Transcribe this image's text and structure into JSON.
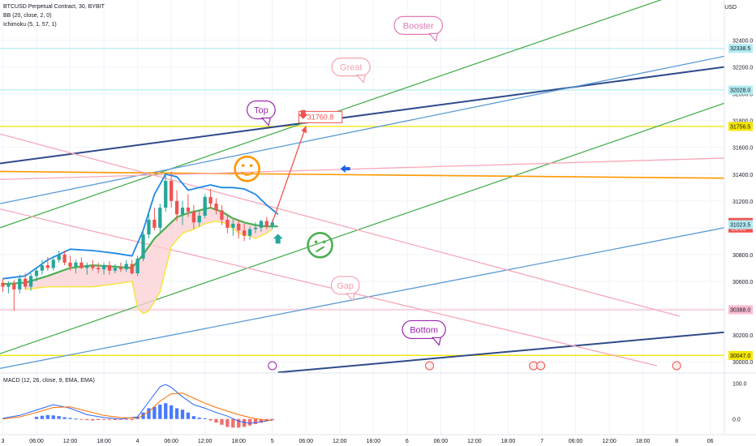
{
  "header": {
    "symbol_line": "BTCUSD Perpetual Contract, 30, BYBIT",
    "bb_line": "BB (20, close, 2, 0)",
    "ichimoku_line": "Ichimoku (5, 1, 57, 1)",
    "currency": "USD"
  },
  "macd": {
    "legend": "MACD (12, 26, close, 9, EMA, EMA)",
    "tick_labels": [
      "100.0",
      "0.0"
    ]
  },
  "colors": {
    "up": "#26a69a",
    "down": "#ef5350",
    "green_line": "#4caf50",
    "blue_line": "#5b9bd5",
    "navy_line": "#2f4a8a",
    "yellow_line": "#f5e500",
    "orange_line": "#ff9800",
    "pink_line": "#f7a8b8",
    "bb_upper": "#1e88e5",
    "ichimoku_lower": "#f5e642",
    "cloud_fill": "#f9cfd3",
    "purple": "#9c27b0"
  },
  "chart_data": {
    "type": "candlestick",
    "symbol": "BTCUSD",
    "interval": "30",
    "exchange": "BYBIT",
    "y_axis": {
      "ticks": [
        32400,
        32200,
        32000,
        31800,
        31600,
        31400,
        31200,
        31000,
        30800,
        30600,
        30400,
        30200,
        30000
      ],
      "tick_labels": [
        "32400.0",
        "32200.0",
        "32000.0",
        "31800.0",
        "31600.0",
        "31400.0",
        "31200.0",
        "31000.0",
        "30800.0",
        "30600.0",
        "30400.0",
        "30200.0",
        "30000.0"
      ],
      "ylim": [
        29940,
        32700
      ]
    },
    "x_axis": {
      "tick_labels": [
        "3",
        "06:00",
        "12:00",
        "18:00",
        "4",
        "06:00",
        "12:00",
        "18:00",
        "5",
        "06:00",
        "12:00",
        "18:00",
        "6",
        "06:00",
        "12:00",
        "18:00",
        "7",
        "06:00",
        "12:00",
        "18:00",
        "8",
        "06"
      ],
      "tick_hours": [
        0,
        6,
        12,
        18,
        24,
        30,
        36,
        42,
        48,
        54,
        60,
        66,
        72,
        78,
        84,
        90,
        96,
        102,
        108,
        114,
        120,
        126
      ],
      "xlim": [
        -0.5,
        128.5
      ]
    },
    "price_marks": [
      {
        "value": 32338.5,
        "label": "32338.5",
        "color": "#b2ebf2"
      },
      {
        "value": 32028.0,
        "label": "32028.0",
        "color": "#b2ebf2"
      },
      {
        "value": 31756.5,
        "label": "31756.5",
        "color": "#f5e500"
      },
      {
        "value": 31040.0,
        "label": "31040.0",
        "sub": "24:05",
        "color": "#ef5350"
      },
      {
        "value": 31023.5,
        "label": "31023.5",
        "color": "#b2ebf2"
      },
      {
        "value": 30388.0,
        "label": "30388.0",
        "color": "#f8bbd0"
      },
      {
        "value": 30047.0,
        "label": "30047.0",
        "color": "#f5e500"
      }
    ],
    "horizontal_lines": [
      {
        "y": 32338.5,
        "color": "#b2ebf2"
      },
      {
        "y": 32028.0,
        "color": "#b2ebf2"
      },
      {
        "y": 31756.5,
        "color": "#f5e500"
      },
      {
        "y": 30388.0,
        "color": "#f8bbd0"
      },
      {
        "y": 30047.0,
        "color": "#f5e500"
      }
    ],
    "trend_lines": [
      {
        "name": "navy-upper",
        "color": "#2f4a8a",
        "points": [
          [
            -0.5,
            31480
          ],
          [
            128.5,
            32200
          ]
        ]
      },
      {
        "name": "navy-lower",
        "color": "#2f4a8a",
        "points": [
          [
            49,
            29920
          ],
          [
            128.5,
            30220
          ]
        ]
      },
      {
        "name": "green-upper",
        "color": "#4caf50",
        "points": [
          [
            -0.5,
            31000
          ],
          [
            118.5,
            32720
          ]
        ]
      },
      {
        "name": "green-lower",
        "color": "#4caf50",
        "points": [
          [
            -0.5,
            30060
          ],
          [
            128.5,
            31930
          ]
        ]
      },
      {
        "name": "blue-upper",
        "color": "#5b9bd5",
        "points": [
          [
            -0.5,
            31180
          ],
          [
            128.5,
            32280
          ]
        ]
      },
      {
        "name": "blue-lower",
        "color": "#5b9bd5",
        "points": [
          [
            -0.5,
            29950
          ],
          [
            128.5,
            31000
          ]
        ]
      },
      {
        "name": "orange",
        "color": "#ff9800",
        "points": [
          [
            -0.5,
            31420
          ],
          [
            128.5,
            31370
          ]
        ]
      },
      {
        "name": "pink-rising",
        "color": "#f7a8b8",
        "points": [
          [
            -0.5,
            31360
          ],
          [
            128.5,
            31520
          ]
        ]
      },
      {
        "name": "pink-falling-1",
        "color": "#f7a8b8",
        "points": [
          [
            -0.5,
            31700
          ],
          [
            120.5,
            30340
          ]
        ]
      },
      {
        "name": "pink-falling-2",
        "color": "#f7a8b8",
        "points": [
          [
            -0.5,
            31140
          ],
          [
            116.5,
            29970
          ]
        ]
      }
    ],
    "candles_x": [
      0,
      1,
      2,
      3,
      4,
      5,
      6,
      7,
      8,
      9,
      10,
      11,
      12,
      13,
      14,
      15,
      16,
      17,
      18,
      19,
      20,
      21,
      22,
      23,
      24,
      25,
      26,
      27,
      28,
      29,
      30,
      31,
      32,
      33,
      34,
      35,
      36,
      37,
      38,
      39,
      40,
      41,
      42,
      43,
      44,
      45,
      46,
      47,
      48
    ],
    "candles": [
      {
        "o": 30590,
        "h": 30620,
        "l": 30520,
        "c": 30560
      },
      {
        "o": 30560,
        "h": 30600,
        "l": 30510,
        "c": 30580
      },
      {
        "o": 30580,
        "h": 30610,
        "l": 30380,
        "c": 30540
      },
      {
        "o": 30540,
        "h": 30650,
        "l": 30510,
        "c": 30620
      },
      {
        "o": 30620,
        "h": 30660,
        "l": 30540,
        "c": 30560
      },
      {
        "o": 30560,
        "h": 30660,
        "l": 30530,
        "c": 30640
      },
      {
        "o": 30640,
        "h": 30700,
        "l": 30600,
        "c": 30680
      },
      {
        "o": 30680,
        "h": 30760,
        "l": 30650,
        "c": 30720
      },
      {
        "o": 30720,
        "h": 30780,
        "l": 30680,
        "c": 30700
      },
      {
        "o": 30700,
        "h": 30790,
        "l": 30680,
        "c": 30760
      },
      {
        "o": 30760,
        "h": 30830,
        "l": 30740,
        "c": 30800
      },
      {
        "o": 30800,
        "h": 30830,
        "l": 30720,
        "c": 30740
      },
      {
        "o": 30740,
        "h": 30790,
        "l": 30680,
        "c": 30710
      },
      {
        "o": 30710,
        "h": 30760,
        "l": 30660,
        "c": 30740
      },
      {
        "o": 30740,
        "h": 30780,
        "l": 30690,
        "c": 30700
      },
      {
        "o": 30700,
        "h": 30740,
        "l": 30650,
        "c": 30720
      },
      {
        "o": 30720,
        "h": 30760,
        "l": 30680,
        "c": 30700
      },
      {
        "o": 30700,
        "h": 30740,
        "l": 30660,
        "c": 30690
      },
      {
        "o": 30690,
        "h": 30740,
        "l": 30650,
        "c": 30720
      },
      {
        "o": 30720,
        "h": 30750,
        "l": 30650,
        "c": 30680
      },
      {
        "o": 30680,
        "h": 30730,
        "l": 30660,
        "c": 30700
      },
      {
        "o": 30700,
        "h": 30740,
        "l": 30670,
        "c": 30690
      },
      {
        "o": 30690,
        "h": 30760,
        "l": 30670,
        "c": 30730
      },
      {
        "o": 30730,
        "h": 30760,
        "l": 30650,
        "c": 30660
      },
      {
        "o": 30660,
        "h": 30790,
        "l": 30640,
        "c": 30770
      },
      {
        "o": 30770,
        "h": 30980,
        "l": 30750,
        "c": 30950
      },
      {
        "o": 30950,
        "h": 31120,
        "l": 30920,
        "c": 31060
      },
      {
        "o": 31060,
        "h": 31150,
        "l": 30980,
        "c": 31000
      },
      {
        "o": 31000,
        "h": 31180,
        "l": 30970,
        "c": 31150
      },
      {
        "o": 31150,
        "h": 31400,
        "l": 31120,
        "c": 31350
      },
      {
        "o": 31350,
        "h": 31420,
        "l": 31150,
        "c": 31200
      },
      {
        "o": 31200,
        "h": 31280,
        "l": 31050,
        "c": 31100
      },
      {
        "o": 31100,
        "h": 31200,
        "l": 31020,
        "c": 31150
      },
      {
        "o": 31150,
        "h": 31250,
        "l": 31080,
        "c": 31120
      },
      {
        "o": 31120,
        "h": 31170,
        "l": 30990,
        "c": 31040
      },
      {
        "o": 31040,
        "h": 31130,
        "l": 31010,
        "c": 31090
      },
      {
        "o": 31090,
        "h": 31250,
        "l": 31070,
        "c": 31230
      },
      {
        "o": 31230,
        "h": 31290,
        "l": 31150,
        "c": 31180
      },
      {
        "o": 31180,
        "h": 31220,
        "l": 31100,
        "c": 31130
      },
      {
        "o": 31130,
        "h": 31170,
        "l": 31020,
        "c": 31060
      },
      {
        "o": 31060,
        "h": 31100,
        "l": 30960,
        "c": 31000
      },
      {
        "o": 31000,
        "h": 31060,
        "l": 30940,
        "c": 31030
      },
      {
        "o": 31030,
        "h": 31060,
        "l": 30920,
        "c": 30980
      },
      {
        "o": 30980,
        "h": 31030,
        "l": 30900,
        "c": 30940
      },
      {
        "o": 30940,
        "h": 31010,
        "l": 30910,
        "c": 30990
      },
      {
        "o": 30990,
        "h": 31040,
        "l": 30960,
        "c": 31000
      },
      {
        "o": 31000,
        "h": 31060,
        "l": 30970,
        "c": 31050
      },
      {
        "o": 31050,
        "h": 31080,
        "l": 30990,
        "c": 31010
      },
      {
        "o": 31010,
        "h": 31060,
        "l": 30990,
        "c": 31040
      }
    ],
    "series": [
      {
        "name": "BB upper",
        "color": "#1e88e5",
        "x": [
          0,
          4,
          8,
          12,
          16,
          20,
          23,
          25,
          27,
          29,
          31,
          33,
          35,
          37,
          39,
          41,
          43,
          45,
          47,
          49
        ],
        "y": [
          30620,
          30640,
          30760,
          30840,
          30830,
          30810,
          30790,
          30980,
          31250,
          31400,
          31380,
          31280,
          31300,
          31320,
          31300,
          31300,
          31290,
          31250,
          31170,
          31100
        ]
      },
      {
        "name": "BB basis",
        "color": "#4caf50",
        "x": [
          0,
          4,
          8,
          12,
          16,
          20,
          23,
          25,
          27,
          29,
          31,
          33,
          35,
          37,
          39,
          41,
          43,
          45,
          47,
          49
        ],
        "y": [
          30580,
          30590,
          30640,
          30700,
          30720,
          30710,
          30700,
          30800,
          30920,
          31000,
          31080,
          31110,
          31130,
          31150,
          31120,
          31070,
          31040,
          31020,
          31010,
          31010
        ]
      },
      {
        "name": "Ichimoku lower",
        "color": "#f5e642",
        "x": [
          4,
          8,
          12,
          16,
          20,
          23,
          24,
          25,
          26,
          28,
          30,
          32,
          34,
          36,
          38,
          40,
          42,
          44,
          45,
          46,
          47,
          48
        ],
        "y": [
          30540,
          30560,
          30560,
          30560,
          30580,
          30600,
          30400,
          30360,
          30380,
          30520,
          30860,
          30960,
          30990,
          31030,
          31050,
          31030,
          30960,
          30940,
          30920,
          30940,
          30960,
          30990
        ]
      }
    ],
    "macd_histogram": [
      {
        "x": 6,
        "v": 6
      },
      {
        "x": 7,
        "v": 9
      },
      {
        "x": 8,
        "v": 11
      },
      {
        "x": 9,
        "v": 10
      },
      {
        "x": 10,
        "v": 8
      },
      {
        "x": 11,
        "v": 5
      },
      {
        "x": 12,
        "v": 3
      },
      {
        "x": 13,
        "v": 1
      },
      {
        "x": 14,
        "v": -2
      },
      {
        "x": 15,
        "v": -3
      },
      {
        "x": 16,
        "v": -4
      },
      {
        "x": 17,
        "v": -3
      },
      {
        "x": 18,
        "v": -2
      },
      {
        "x": 19,
        "v": -2
      },
      {
        "x": 20,
        "v": -3
      },
      {
        "x": 21,
        "v": -2
      },
      {
        "x": 22,
        "v": -2
      },
      {
        "x": 23,
        "v": -3
      },
      {
        "x": 24,
        "v": 6
      },
      {
        "x": 25,
        "v": 18
      },
      {
        "x": 26,
        "v": 30
      },
      {
        "x": 27,
        "v": 34
      },
      {
        "x": 28,
        "v": 40
      },
      {
        "x": 29,
        "v": 44
      },
      {
        "x": 30,
        "v": 38
      },
      {
        "x": 31,
        "v": 30
      },
      {
        "x": 32,
        "v": 26
      },
      {
        "x": 33,
        "v": 18
      },
      {
        "x": 34,
        "v": 8
      },
      {
        "x": 35,
        "v": 4
      },
      {
        "x": 36,
        "v": 2
      },
      {
        "x": 37,
        "v": -4
      },
      {
        "x": 38,
        "v": -10
      },
      {
        "x": 39,
        "v": -16
      },
      {
        "x": 40,
        "v": -22
      },
      {
        "x": 41,
        "v": -24
      },
      {
        "x": 42,
        "v": -24
      },
      {
        "x": 43,
        "v": -22
      },
      {
        "x": 44,
        "v": -18
      },
      {
        "x": 45,
        "v": -14
      },
      {
        "x": 46,
        "v": -10
      },
      {
        "x": 47,
        "v": -6
      },
      {
        "x": 48,
        "v": -3
      }
    ],
    "macd_lines": [
      {
        "name": "MACD",
        "color": "#2962ff",
        "x": [
          0,
          3,
          6,
          9,
          12,
          15,
          18,
          21,
          24,
          26,
          28,
          29,
          30,
          32,
          34,
          36,
          38,
          40,
          42,
          44,
          46,
          48
        ],
        "y": [
          2,
          10,
          25,
          40,
          30,
          12,
          4,
          0,
          6,
          48,
          90,
          96,
          88,
          62,
          40,
          30,
          18,
          8,
          -6,
          -12,
          -8,
          -2
        ]
      },
      {
        "name": "Signal",
        "color": "#ff6d00",
        "x": [
          0,
          3,
          6,
          9,
          12,
          15,
          18,
          21,
          24,
          26,
          28,
          30,
          32,
          34,
          36,
          38,
          40,
          42,
          44,
          46,
          48
        ],
        "y": [
          0,
          6,
          18,
          32,
          34,
          22,
          10,
          4,
          2,
          20,
          50,
          70,
          72,
          58,
          44,
          32,
          22,
          12,
          4,
          -2,
          -4
        ]
      }
    ],
    "annotations": [
      {
        "text": "Booster",
        "x": 74,
        "y": 32510,
        "color": "#e07bb5"
      },
      {
        "text": "Great",
        "x": 62,
        "y": 32200,
        "color": "#f4a1b0"
      },
      {
        "text": "Top",
        "x": 46,
        "y": 31880,
        "color": "#9c27b0"
      },
      {
        "text": "31760.8",
        "x": 57,
        "y": 31820,
        "color": "#ef5350"
      },
      {
        "text": "Gap",
        "x": 61,
        "y": 30570,
        "color": "#f4a1b0"
      },
      {
        "text": "Bottom",
        "x": 75,
        "y": 30240,
        "color": "#9c27b0"
      }
    ],
    "projection_arrow": {
      "from": [
        48,
        31040
      ],
      "to": [
        54,
        31760
      ],
      "color": "#ef5350"
    },
    "event_markers_x": [
      48,
      76,
      94.5,
      95.8,
      120
    ]
  }
}
